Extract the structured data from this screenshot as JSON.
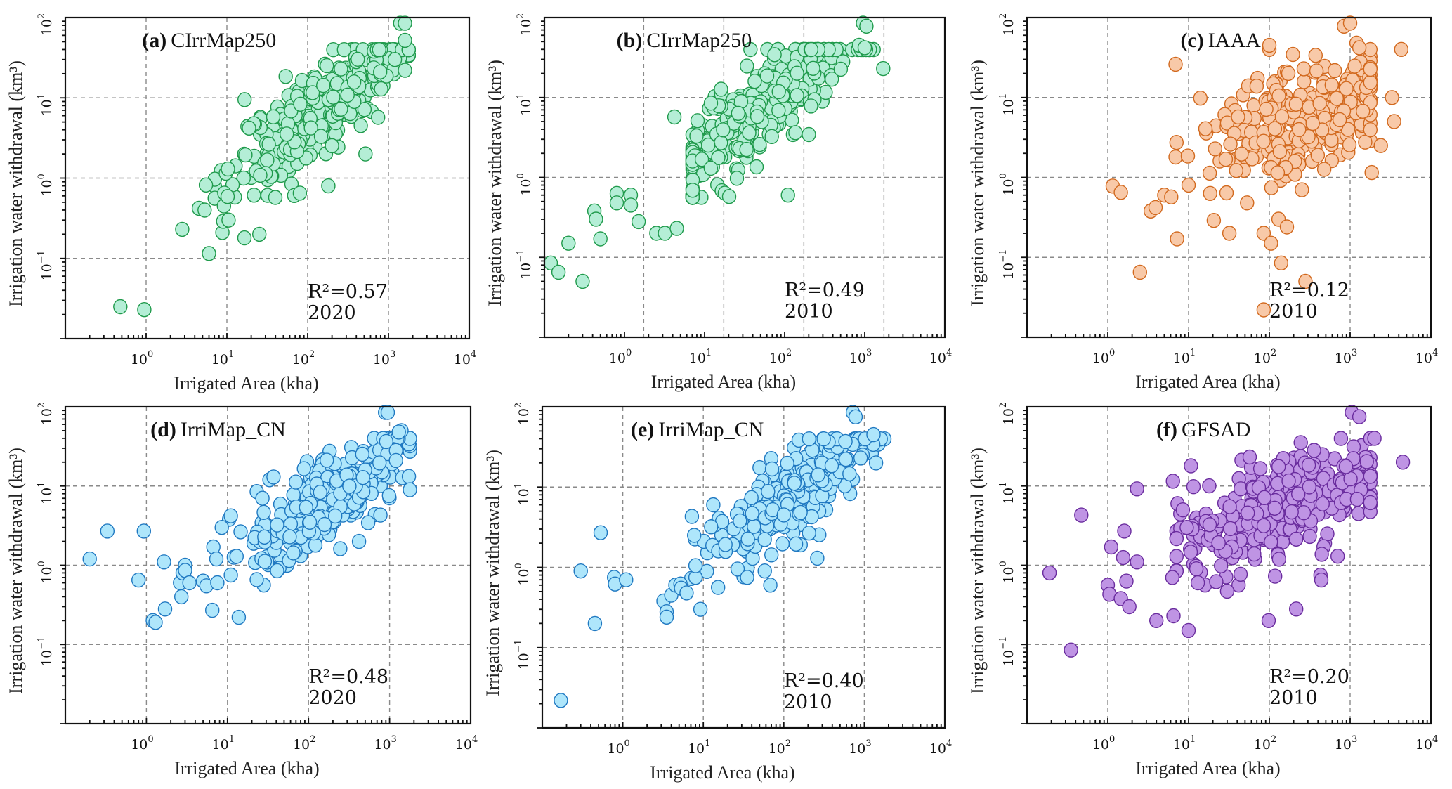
{
  "figure": {
    "x_axis_label": "Irrigated Area (kha)",
    "y_axis_label": "Irrigation water withdrawal (km³)"
  },
  "chart_data": [
    {
      "id": "a",
      "type": "scatter",
      "panel_letter": "(a)",
      "dataset": "CIrrMap250",
      "r2_text": "R²=0.57",
      "r2": 0.57,
      "year": "2020",
      "xscale": "log",
      "yscale": "log",
      "xlim": [
        0.1,
        10000
      ],
      "ylim": [
        0.01,
        100
      ],
      "xticks": [
        "10^0",
        "10^1",
        "10^2",
        "10^3",
        "10^4"
      ],
      "yticks": [
        "10^-1",
        "10^0",
        "10^1",
        "10^2"
      ],
      "grid": true,
      "xlabel": "Irrigated Area (kha)",
      "ylabel": "Irrigation water withdrawal (km³)",
      "color": {
        "fill": "#b4eed6",
        "stroke": "#1f9a4b"
      },
      "seed": 11,
      "cluster": {
        "n": 330,
        "logx_mean": 2.2,
        "logx_sd": 0.55,
        "slope": 0.75,
        "intercept": -0.75,
        "noise": 0.28
      },
      "points": [
        [
          0.48,
          0.025
        ],
        [
          0.95,
          0.023
        ],
        [
          2.8,
          0.23
        ],
        [
          4.5,
          0.42
        ],
        [
          5.3,
          0.4
        ],
        [
          5.5,
          0.82
        ],
        [
          6.0,
          0.115
        ],
        [
          8.8,
          0.21
        ],
        [
          9.0,
          0.29
        ],
        [
          9.2,
          0.45
        ],
        [
          9.3,
          0.65
        ],
        [
          10.2,
          0.59
        ],
        [
          10.5,
          0.3
        ],
        [
          9.7,
          1.15
        ],
        [
          10.3,
          1.3
        ],
        [
          16.5,
          0.18
        ],
        [
          25.2,
          0.2
        ],
        [
          18.8,
          4.2
        ],
        [
          37.5,
          5.8
        ],
        [
          80,
          0.65
        ],
        [
          180,
          0.8
        ],
        [
          520,
          2.0
        ],
        [
          1400,
          85
        ],
        [
          1600,
          85
        ],
        [
          1600,
          52
        ],
        [
          1600,
          22
        ],
        [
          1200,
          30
        ]
      ]
    },
    {
      "id": "b",
      "type": "scatter",
      "panel_letter": "(b)",
      "dataset": "CIrrMap250",
      "r2_text": "R²=0.49",
      "r2": 0.49,
      "year": "2010",
      "xscale": "log",
      "yscale": "log",
      "xlim": [
        0.1,
        10000
      ],
      "ylim": [
        0.01,
        100
      ],
      "xticks": [
        "10^0",
        "10^1",
        "10^2",
        "10^3",
        "10^4"
      ],
      "yticks": [
        "10^-1",
        "10^0",
        "10^1",
        "10^2"
      ],
      "grid": true,
      "xlabel": "Irrigated Area (kha)",
      "ylabel": "Irrigation water withdrawal (km³)",
      "color": {
        "fill": "#b4eed6",
        "stroke": "#1f9a4b"
      },
      "seed": 23,
      "cluster": {
        "n": 330,
        "logx_mean": 1.6,
        "logx_sd": 0.6,
        "slope": 0.72,
        "intercept": -0.35,
        "noise": 0.28
      },
      "points": [
        [
          0.12,
          0.085
        ],
        [
          0.15,
          0.065
        ],
        [
          0.3,
          0.05
        ],
        [
          0.2,
          0.15
        ],
        [
          0.5,
          0.17
        ],
        [
          0.42,
          0.38
        ],
        [
          0.44,
          0.3
        ],
        [
          0.8,
          0.63
        ],
        [
          0.8,
          0.48
        ],
        [
          1.2,
          0.6
        ],
        [
          1.2,
          0.45
        ],
        [
          1.5,
          0.28
        ],
        [
          2.5,
          0.2
        ],
        [
          3.2,
          0.2
        ],
        [
          4.5,
          0.23
        ],
        [
          4.2,
          5.7
        ],
        [
          12,
          8.5
        ],
        [
          110,
          0.6
        ],
        [
          950,
          85
        ],
        [
          1050,
          78
        ],
        [
          1700,
          23
        ],
        [
          850,
          45
        ],
        [
          1000,
          42
        ]
      ]
    },
    {
      "id": "c",
      "type": "scatter",
      "panel_letter": "(c)",
      "dataset": "IAAA",
      "r2_text": "R²=0.12",
      "r2": 0.12,
      "year": "2010",
      "xscale": "log",
      "yscale": "log",
      "xlim": [
        0.1,
        10000
      ],
      "ylim": [
        0.01,
        100
      ],
      "xticks": [
        "10^0",
        "10^1",
        "10^2",
        "10^3",
        "10^4"
      ],
      "yticks": [
        "10^-1",
        "10^0",
        "10^1",
        "10^2"
      ],
      "grid": true,
      "xlabel": "Irrigated Area (kha)",
      "ylabel": "Irrigation water withdrawal (km³)",
      "color": {
        "fill": "#f8c9a8",
        "stroke": "#d2691e"
      },
      "seed": 37,
      "cluster": {
        "n": 300,
        "logx_mean": 2.4,
        "logx_sd": 0.5,
        "slope": 0.3,
        "intercept": 0.05,
        "noise": 0.33
      },
      "points": [
        [
          1.15,
          0.78
        ],
        [
          1.45,
          0.65
        ],
        [
          2.5,
          0.065
        ],
        [
          3.4,
          0.38
        ],
        [
          3.9,
          0.42
        ],
        [
          5.0,
          0.6
        ],
        [
          6.1,
          0.57
        ],
        [
          7.2,
          0.17
        ],
        [
          6.9,
          1.8
        ],
        [
          9.8,
          1.85
        ],
        [
          10,
          0.8
        ],
        [
          6.9,
          26
        ],
        [
          14,
          9.8
        ],
        [
          18.5,
          0.63
        ],
        [
          20.5,
          0.29
        ],
        [
          29.5,
          0.64
        ],
        [
          32,
          0.2
        ],
        [
          53,
          0.48
        ],
        [
          85,
          0.2
        ],
        [
          105,
          0.15
        ],
        [
          140,
          0.085
        ],
        [
          280,
          0.05
        ],
        [
          85,
          0.022
        ],
        [
          130,
          0.3
        ],
        [
          165,
          0.24
        ],
        [
          840,
          78
        ],
        [
          1000,
          85
        ],
        [
          1200,
          48
        ],
        [
          1300,
          42
        ],
        [
          4300,
          40
        ],
        [
          3300,
          10
        ],
        [
          3500,
          5
        ],
        [
          2400,
          2.5
        ],
        [
          1850,
          1.15
        ],
        [
          100,
          40
        ],
        [
          100,
          45
        ]
      ]
    },
    {
      "id": "d",
      "type": "scatter",
      "panel_letter": "(d)",
      "dataset": "IrriMap_CN",
      "r2_text": "R²=0.48",
      "r2": 0.48,
      "year": "2020",
      "xscale": "log",
      "yscale": "log",
      "xlim": [
        0.1,
        10000
      ],
      "ylim": [
        0.01,
        100
      ],
      "xticks": [
        "10^0",
        "10^1",
        "10^2",
        "10^3",
        "10^4"
      ],
      "yticks": [
        "10^-1",
        "10^0",
        "10^1",
        "10^2"
      ],
      "grid": true,
      "xlabel": "Irrigated Area (kha)",
      "ylabel": "Irrigation water withdrawal (km³)",
      "color": {
        "fill": "#aee6fb",
        "stroke": "#1f78c1"
      },
      "seed": 41,
      "cluster": {
        "n": 330,
        "logx_mean": 2.25,
        "logx_sd": 0.5,
        "slope": 0.7,
        "intercept": -0.75,
        "noise": 0.25
      },
      "points": [
        [
          0.2,
          1.2
        ],
        [
          0.33,
          2.7
        ],
        [
          0.8,
          0.65
        ],
        [
          0.93,
          2.7
        ],
        [
          1.2,
          0.2
        ],
        [
          1.3,
          0.19
        ],
        [
          1.65,
          1.1
        ],
        [
          1.7,
          0.28
        ],
        [
          2.7,
          0.4
        ],
        [
          2.6,
          0.6
        ],
        [
          2.8,
          0.8
        ],
        [
          3.0,
          1.0
        ],
        [
          3.0,
          0.86
        ],
        [
          3.4,
          0.6
        ],
        [
          5.0,
          0.63
        ],
        [
          5.5,
          0.55
        ],
        [
          6.5,
          0.27
        ],
        [
          6.7,
          1.7
        ],
        [
          7.3,
          1.2
        ],
        [
          7.5,
          0.6
        ],
        [
          13.8,
          0.22
        ],
        [
          10.5,
          3.8
        ],
        [
          11,
          4.2
        ],
        [
          8.5,
          3.0
        ],
        [
          23,
          8.5
        ],
        [
          27,
          7
        ],
        [
          33,
          12
        ],
        [
          37,
          13
        ],
        [
          420,
          2.0
        ],
        [
          880,
          85
        ],
        [
          950,
          85
        ],
        [
          1400,
          50
        ],
        [
          1300,
          48
        ],
        [
          1200,
          28
        ],
        [
          1200,
          21
        ]
      ]
    },
    {
      "id": "e",
      "type": "scatter",
      "panel_letter": "(e)",
      "dataset": "IrriMap_CN",
      "r2_text": "R²=0.40",
      "r2": 0.4,
      "year": "2010",
      "xscale": "log",
      "yscale": "log",
      "xlim": [
        0.1,
        10000
      ],
      "ylim": [
        0.01,
        100
      ],
      "xticks": [
        "10^0",
        "10^1",
        "10^2",
        "10^3",
        "10^4"
      ],
      "yticks": [
        "10^-1",
        "10^0",
        "10^1",
        "10^2"
      ],
      "grid": true,
      "xlabel": "Irrigated Area (kha)",
      "ylabel": "Irrigation water withdrawal (km³)",
      "color": {
        "fill": "#aee6fb",
        "stroke": "#1f78c1"
      },
      "seed": 53,
      "cluster": {
        "n": 330,
        "logx_mean": 2.15,
        "logx_sd": 0.5,
        "slope": 0.72,
        "intercept": -0.6,
        "noise": 0.25
      },
      "points": [
        [
          0.17,
          0.022
        ],
        [
          0.3,
          0.9
        ],
        [
          0.45,
          0.2
        ],
        [
          0.53,
          2.7
        ],
        [
          0.78,
          0.75
        ],
        [
          0.8,
          0.62
        ],
        [
          1.1,
          0.7
        ],
        [
          3.2,
          0.38
        ],
        [
          3.5,
          0.28
        ],
        [
          3.5,
          0.24
        ],
        [
          4.0,
          0.45
        ],
        [
          4.5,
          0.6
        ],
        [
          5.2,
          0.62
        ],
        [
          5.3,
          0.55
        ],
        [
          6.2,
          0.48
        ],
        [
          9.2,
          0.3
        ],
        [
          7.2,
          4.3
        ],
        [
          7.7,
          2.5
        ],
        [
          8,
          0.75
        ],
        [
          8,
          1.05
        ],
        [
          12.5,
          3.2
        ],
        [
          13.3,
          6
        ],
        [
          35,
          0.75
        ],
        [
          58,
          0.9
        ],
        [
          68,
          0.6
        ],
        [
          260,
          1.3
        ],
        [
          720,
          85
        ],
        [
          780,
          75
        ],
        [
          1300,
          45
        ],
        [
          1400,
          20
        ],
        [
          900,
          23
        ]
      ]
    },
    {
      "id": "f",
      "type": "scatter",
      "panel_letter": "(f)",
      "dataset": "GFSAD",
      "r2_text": "R²=0.20",
      "r2": 0.2,
      "year": "2010",
      "xscale": "log",
      "yscale": "log",
      "xlim": [
        0.1,
        10000
      ],
      "ylim": [
        0.01,
        100
      ],
      "xticks": [
        "10^0",
        "10^1",
        "10^2",
        "10^3",
        "10^4"
      ],
      "yticks": [
        "10^-1",
        "10^0",
        "10^1",
        "10^2"
      ],
      "grid": true,
      "xlabel": "Irrigated Area (kha)",
      "ylabel": "Irrigation water withdrawal (km³)",
      "color": {
        "fill": "#bf94e4",
        "stroke": "#6a2c9e"
      },
      "seed": 67,
      "cluster": {
        "n": 300,
        "logx_mean": 2.1,
        "logx_sd": 0.6,
        "slope": 0.35,
        "intercept": -0.05,
        "noise": 0.3
      },
      "points": [
        [
          0.19,
          0.8
        ],
        [
          0.35,
          0.085
        ],
        [
          0.47,
          4.3
        ],
        [
          1.0,
          0.56
        ],
        [
          1.05,
          0.43
        ],
        [
          1.1,
          1.7
        ],
        [
          1.45,
          0.38
        ],
        [
          1.55,
          1.25
        ],
        [
          1.6,
          2.7
        ],
        [
          1.7,
          0.63
        ],
        [
          1.85,
          0.3
        ],
        [
          2.3,
          1.1
        ],
        [
          2.3,
          9.2
        ],
        [
          4.0,
          0.2
        ],
        [
          6.3,
          0.7
        ],
        [
          6.4,
          11.5
        ],
        [
          6.5,
          0.23
        ],
        [
          7.3,
          6
        ],
        [
          8.5,
          5
        ],
        [
          9.5,
          3
        ],
        [
          10,
          0.15
        ],
        [
          10.7,
          18
        ],
        [
          11.5,
          9.8
        ],
        [
          12.5,
          0.9
        ],
        [
          13,
          0.6
        ],
        [
          22,
          0.62
        ],
        [
          30,
          0.47
        ],
        [
          44,
          0.77
        ],
        [
          98,
          0.2
        ],
        [
          215,
          0.28
        ],
        [
          430,
          0.75
        ],
        [
          440,
          0.65
        ],
        [
          700,
          1.3
        ],
        [
          1050,
          85
        ],
        [
          1300,
          75
        ],
        [
          4500,
          20
        ],
        [
          2000,
          40
        ]
      ]
    }
  ]
}
